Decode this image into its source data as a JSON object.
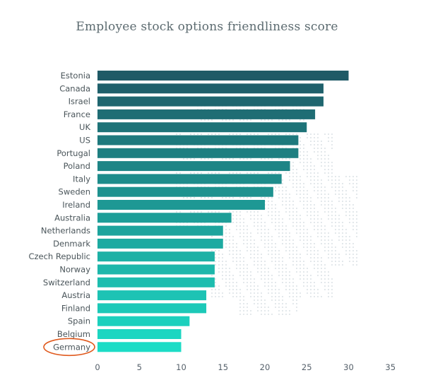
{
  "chart_data": {
    "type": "bar",
    "orientation": "horizontal",
    "title": "Employee stock options friendliness score",
    "xlabel": "",
    "ylabel": "",
    "categories": [
      "Estonia",
      "Canada",
      "Israel",
      "France",
      "UK",
      "US",
      "Portugal",
      "Poland",
      "Italy",
      "Sweden",
      "Ireland",
      "Australia",
      "Netherlands",
      "Denmark",
      "Czech Republic",
      "Norway",
      "Switzerland",
      "Austria",
      "Finland",
      "Spain",
      "Belgium",
      "Germany"
    ],
    "values": [
      30,
      27,
      27,
      26,
      25,
      24,
      24,
      23,
      22,
      21,
      20,
      16,
      15,
      15,
      14,
      14,
      14,
      13,
      13,
      11,
      10,
      10
    ],
    "xlim": [
      0,
      35
    ],
    "xticks": [
      "0",
      "5",
      "10",
      "15",
      "20",
      "25",
      "30",
      "35"
    ],
    "grid": false,
    "legend": "none",
    "highlighted_category": "Germany",
    "colors": {
      "bar_top": "#1f5a66",
      "bar_bottom": "#1cdcc6",
      "highlight_ring": "#e05a1e",
      "background_map_dots": "#cfd8dc"
    }
  }
}
